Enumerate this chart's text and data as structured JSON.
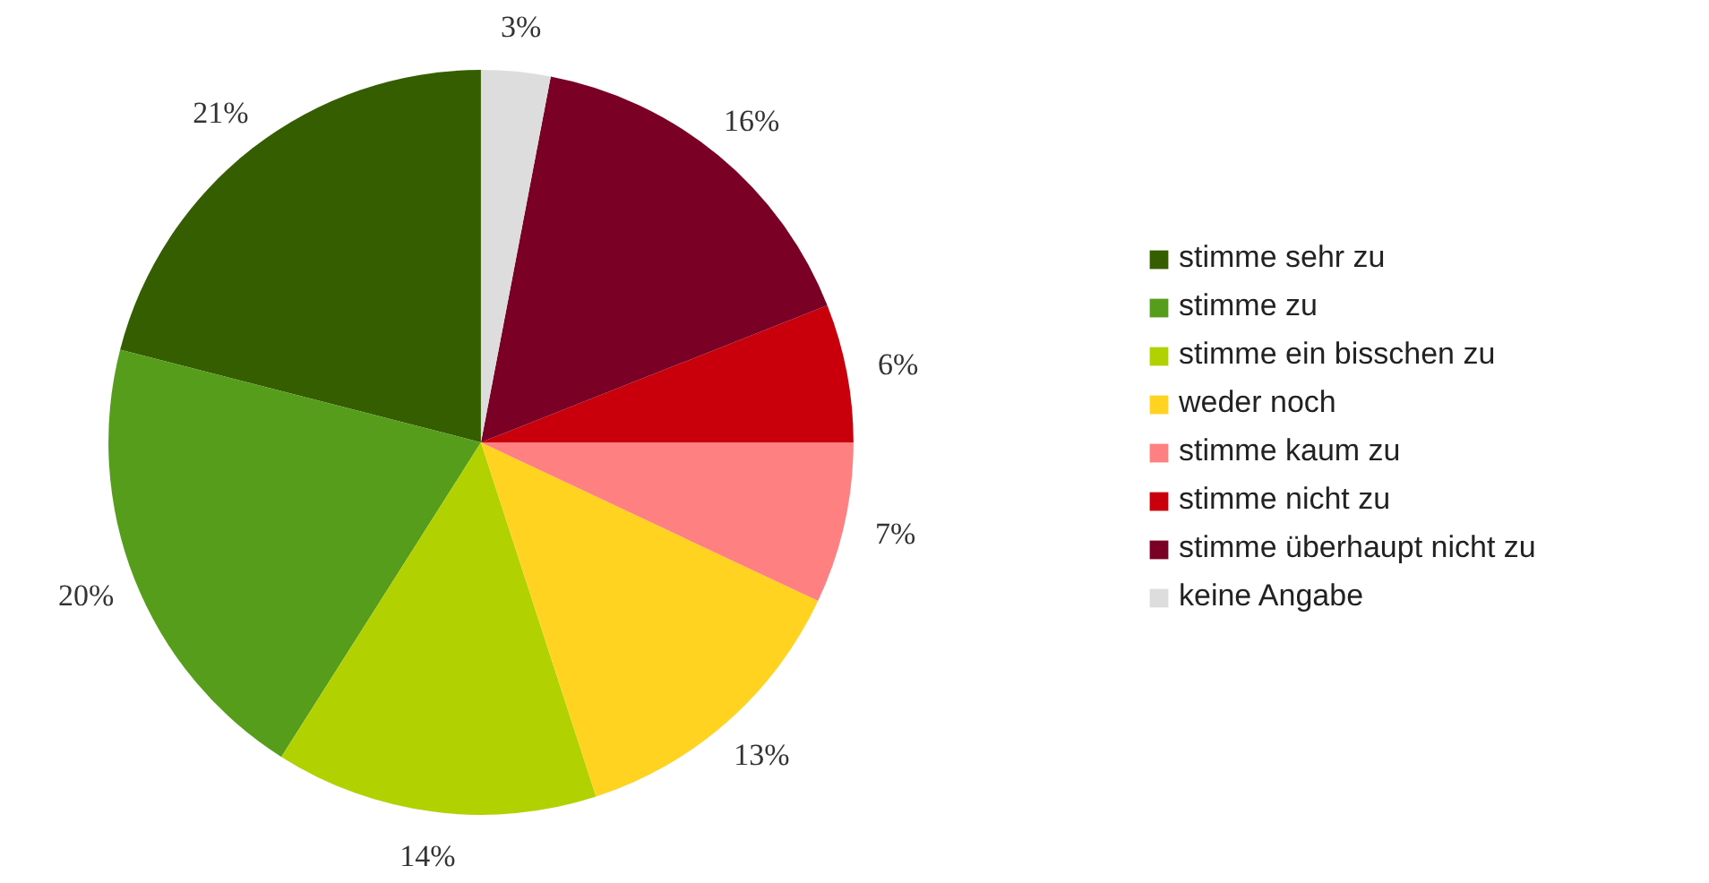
{
  "chart_data": {
    "type": "pie",
    "categories": [
      "stimme sehr zu",
      "stimme zu",
      "stimme ein bisschen zu",
      "weder noch",
      "stimme kaum zu",
      "stimme nicht zu",
      "stimme überhaupt nicht zu",
      "keine Angabe"
    ],
    "values": [
      21,
      20,
      14,
      13,
      7,
      6,
      16,
      3
    ],
    "colors": [
      "#355e00",
      "#579d1c",
      "#b2d200",
      "#ffd320",
      "#ff8080",
      "#c9000b",
      "#7b0025",
      "#dddddd"
    ],
    "value_labels": [
      "21%",
      "20%",
      "14%",
      "13%",
      "7%",
      "6%",
      "16%",
      "3%"
    ],
    "legend": "right"
  }
}
